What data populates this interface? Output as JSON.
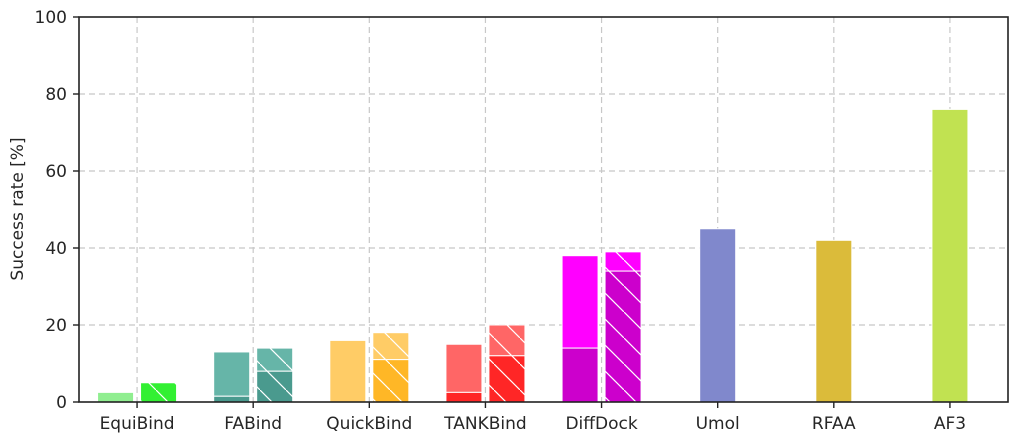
{
  "chart_data": {
    "type": "bar",
    "ylabel": "Success rate [%]",
    "xlabel": "",
    "ylim": [
      0,
      100
    ],
    "yticks": [
      "0",
      "20",
      "40",
      "60",
      "80",
      "100"
    ],
    "grid": true,
    "categories": [
      "EquiBind",
      "FABind",
      "QuickBind",
      "TANKBind",
      "DiffDock",
      "Umol",
      "RFAA",
      "AF3"
    ],
    "groups": [
      {
        "category": "EquiBind",
        "bars": [
          {
            "variant": "plain",
            "light_color": "#90EE90",
            "dark_color": "#90EE90",
            "lower": 0,
            "total": 2.5
          },
          {
            "variant": "hatched",
            "light_color": "#32F032",
            "dark_color": "#32F032",
            "lower": 0,
            "total": 5
          }
        ]
      },
      {
        "category": "FABind",
        "bars": [
          {
            "variant": "plain",
            "light_color": "#66B5A8",
            "dark_color": "#4A9A8E",
            "lower": 1.5,
            "total": 13
          },
          {
            "variant": "hatched",
            "light_color": "#66B5A8",
            "dark_color": "#4A9A8E",
            "lower": 8,
            "total": 14
          }
        ]
      },
      {
        "category": "QuickBind",
        "bars": [
          {
            "variant": "plain",
            "light_color": "#FFCC66",
            "dark_color": "#FFB726",
            "lower": 0,
            "total": 16
          },
          {
            "variant": "hatched",
            "light_color": "#FFCC66",
            "dark_color": "#FFB726",
            "lower": 11,
            "total": 18
          }
        ]
      },
      {
        "category": "TANKBind",
        "bars": [
          {
            "variant": "plain",
            "light_color": "#FF6666",
            "dark_color": "#FF2626",
            "lower": 2.5,
            "total": 15
          },
          {
            "variant": "hatched",
            "light_color": "#FF6666",
            "dark_color": "#FF2626",
            "lower": 12,
            "total": 20
          }
        ]
      },
      {
        "category": "DiffDock",
        "bars": [
          {
            "variant": "plain",
            "light_color": "#FF00FF",
            "dark_color": "#CC00CC",
            "lower": 14,
            "total": 38
          },
          {
            "variant": "hatched",
            "light_color": "#FF00FF",
            "dark_color": "#CC00CC",
            "lower": 34,
            "total": 39
          }
        ]
      },
      {
        "category": "Umol",
        "bars": [
          {
            "variant": "plain",
            "light_color": "#8088CC",
            "dark_color": "#8088CC",
            "lower": 0,
            "total": 45
          }
        ]
      },
      {
        "category": "RFAA",
        "bars": [
          {
            "variant": "plain",
            "light_color": "#DBBB3A",
            "dark_color": "#DBBB3A",
            "lower": 0,
            "total": 42
          }
        ]
      },
      {
        "category": "AF3",
        "bars": [
          {
            "variant": "plain",
            "light_color": "#C1E251",
            "dark_color": "#C1E251",
            "lower": 0,
            "total": 76
          }
        ]
      }
    ]
  }
}
